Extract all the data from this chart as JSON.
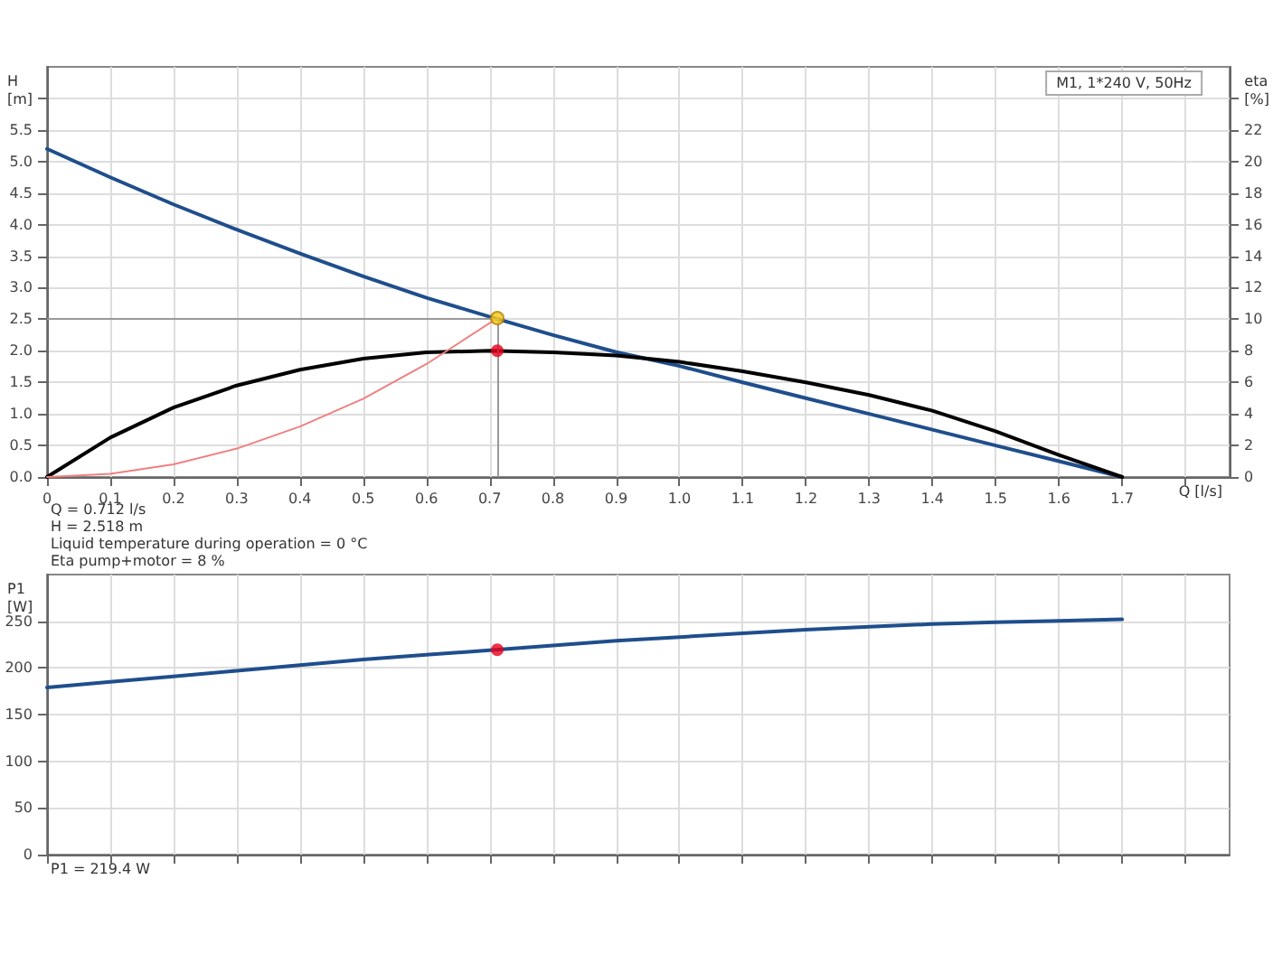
{
  "chart_data": [
    {
      "type": "line",
      "title": "M1, 1*240 V, 50Hz",
      "xlabel": "Q [l/s]",
      "ylabel": "H [m]",
      "y2label": "eta [%]",
      "xlim": [
        0,
        1.87
      ],
      "xticks": [
        0,
        0.1,
        0.2,
        0.3,
        0.4,
        0.5,
        0.6,
        0.7,
        0.8,
        0.9,
        {
          "value": 1,
          "label": "1.0"
        },
        1.1,
        1.2,
        1.3,
        1.4,
        1.5,
        1.6,
        1.7,
        {
          "value": 1.8,
          "label": null
        }
      ],
      "ylim": [
        0,
        6.5
      ],
      "yticks": [
        {
          "value": 0,
          "label": "0.0"
        },
        0.5,
        {
          "value": 1,
          "label": "1.0"
        },
        1.5,
        {
          "value": 2,
          "label": "2.0"
        },
        2.5,
        {
          "value": 3,
          "label": "3.0"
        },
        3.5,
        {
          "value": 4,
          "label": "4.0"
        },
        4.5,
        {
          "value": 5,
          "label": "5.0"
        },
        5.5,
        {
          "value": 6,
          "label": null
        }
      ],
      "y2lim": [
        0,
        26
      ],
      "y2ticks": [
        0,
        2,
        4,
        6,
        8,
        10,
        12,
        14,
        16,
        18,
        20,
        22,
        {
          "value": 24,
          "label": null
        }
      ],
      "grid": true,
      "line_style": "solid",
      "series": [
        {
          "type": "line",
          "color": "#1f4e8c",
          "x": [
            0,
            0.1,
            0.2,
            0.3,
            0.4,
            0.5,
            0.6,
            0.7,
            0.8,
            0.9,
            1.0,
            1.1,
            1.2,
            1.3,
            1.4,
            1.5,
            1.6,
            1.7
          ],
          "values": [
            5.2,
            4.75,
            4.32,
            3.92,
            3.54,
            3.18,
            2.84,
            2.54,
            2.25,
            1.98,
            1.76,
            1.5,
            1.25,
            1.0,
            0.75,
            0.5,
            0.25,
            0
          ]
        },
        {
          "type": "line",
          "color": "#000000",
          "axis": "y2",
          "x": [
            0,
            0.1,
            0.2,
            0.3,
            0.4,
            0.5,
            0.6,
            0.7,
            0.8,
            0.9,
            1.0,
            1.1,
            1.2,
            1.3,
            1.4,
            1.5,
            1.6,
            1.7
          ],
          "values": [
            0,
            2.5,
            4.4,
            5.8,
            6.8,
            7.5,
            7.9,
            8.0,
            7.9,
            7.7,
            7.3,
            6.7,
            6.0,
            5.2,
            4.2,
            2.9,
            1.4,
            0
          ]
        },
        {
          "type": "line",
          "color": "#f08080",
          "x": [
            0,
            0.1,
            0.2,
            0.3,
            0.4,
            0.5,
            0.6,
            0.712
          ],
          "values": [
            0,
            0.05,
            0.2,
            0.45,
            0.8,
            1.24,
            1.79,
            2.518
          ]
        },
        {
          "type": "scatter",
          "color": "#f5c518",
          "x": [
            0.712
          ],
          "values": [
            2.518
          ]
        },
        {
          "type": "scatter",
          "color": "#e8001c",
          "axis": "y2",
          "x": [
            0.712
          ],
          "values": [
            8
          ]
        }
      ],
      "ref_lines": [
        {
          "axis": "y",
          "value": 2.518,
          "color": "#999999"
        },
        {
          "axis": "x",
          "value": 0.712,
          "color": "#999999"
        }
      ],
      "annotations": [
        "Q = 0.712 l/s",
        "H = 2.518 m",
        "Liquid temperature during operation = 0 °C",
        "Eta pump+motor = 8 %"
      ]
    },
    {
      "type": "line",
      "ylabel": "P1 [W]",
      "xlim": [
        0,
        1.87
      ],
      "xticks": [
        0,
        0.1,
        0.2,
        0.3,
        0.4,
        0.5,
        0.6,
        0.7,
        0.8,
        0.9,
        1,
        1.1,
        1.2,
        1.3,
        1.4,
        1.5,
        1.6,
        1.7,
        1.8
      ],
      "ylim": [
        0,
        300
      ],
      "yticks": [
        0,
        50,
        100,
        150,
        200,
        250
      ],
      "tick_labels": "y",
      "grid": true,
      "line_style": "solid",
      "series": [
        {
          "type": "line",
          "color": "#1f4e8c",
          "x": [
            0,
            0.1,
            0.2,
            0.3,
            0.4,
            0.5,
            0.6,
            0.7,
            0.8,
            0.9,
            1.0,
            1.1,
            1.2,
            1.3,
            1.4,
            1.5,
            1.6,
            1.7
          ],
          "values": [
            179,
            185,
            191,
            197,
            203,
            209,
            214,
            219,
            224,
            229,
            233,
            237,
            241,
            244,
            247,
            249,
            250.5,
            252
          ]
        },
        {
          "type": "scatter",
          "color": "#e8001c",
          "x": [
            0.712
          ],
          "values": [
            219.4
          ]
        }
      ],
      "annotations": [
        "P1 = 219.4 W"
      ]
    }
  ]
}
